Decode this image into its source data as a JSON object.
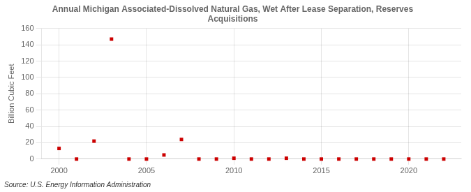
{
  "chart_data": {
    "type": "scatter",
    "title": "Annual Michigan Associated-Dissolved Natural Gas, Wet After Lease Separation, Reserves\nAcquisitions",
    "ylabel": "Billion Cubic Feet",
    "annotations": [
      "Source: U.S. Energy Information Administration"
    ],
    "x": [
      2000,
      2001,
      2002,
      2003,
      2004,
      2005,
      2006,
      2007,
      2008,
      2009,
      2010,
      2011,
      2012,
      2013,
      2014,
      2015,
      2016,
      2017,
      2018,
      2019,
      2020,
      2021,
      2022
    ],
    "values": [
      13,
      0,
      22,
      147,
      0,
      0,
      5,
      24,
      0,
      0,
      1,
      0,
      0,
      1,
      0,
      0,
      0,
      0,
      0,
      0,
      0,
      0,
      0
    ],
    "color": "#cc0000",
    "marker": "square",
    "xlim": [
      1999,
      2023
    ],
    "xticks": [
      2000,
      2005,
      2010,
      2015,
      2020
    ],
    "ylim": [
      0,
      160
    ],
    "yticks": [
      0,
      20,
      40,
      60,
      80,
      100,
      120,
      140,
      160
    ],
    "grid": true
  }
}
